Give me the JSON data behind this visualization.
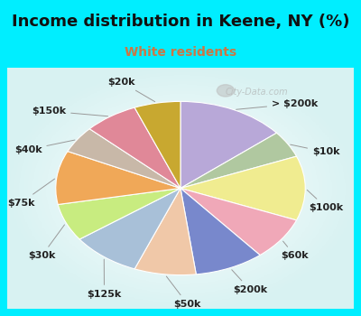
{
  "title": "Income distribution in Keene, NY (%)",
  "subtitle": "White residents",
  "title_color": "#111111",
  "subtitle_color": "#cc7744",
  "background_cyan": "#00eeff",
  "labels": [
    "> $200k",
    "$10k",
    "$100k",
    "$60k",
    "$200k",
    "$50k",
    "$125k",
    "$30k",
    "$75k",
    "$40k",
    "$150k",
    "$20k"
  ],
  "values": [
    14,
    5,
    12,
    8,
    9,
    8,
    9,
    7,
    10,
    5,
    7,
    6
  ],
  "colors": [
    "#b8a8d8",
    "#b0c8a0",
    "#f0ec90",
    "#f0a8b8",
    "#7888cc",
    "#f0c8a8",
    "#a8c0d8",
    "#c8ec80",
    "#f0a858",
    "#c8b8a8",
    "#e08898",
    "#c8a830"
  ],
  "watermark": "City-Data.com",
  "title_fontsize": 13,
  "subtitle_fontsize": 10,
  "label_fontsize": 8
}
